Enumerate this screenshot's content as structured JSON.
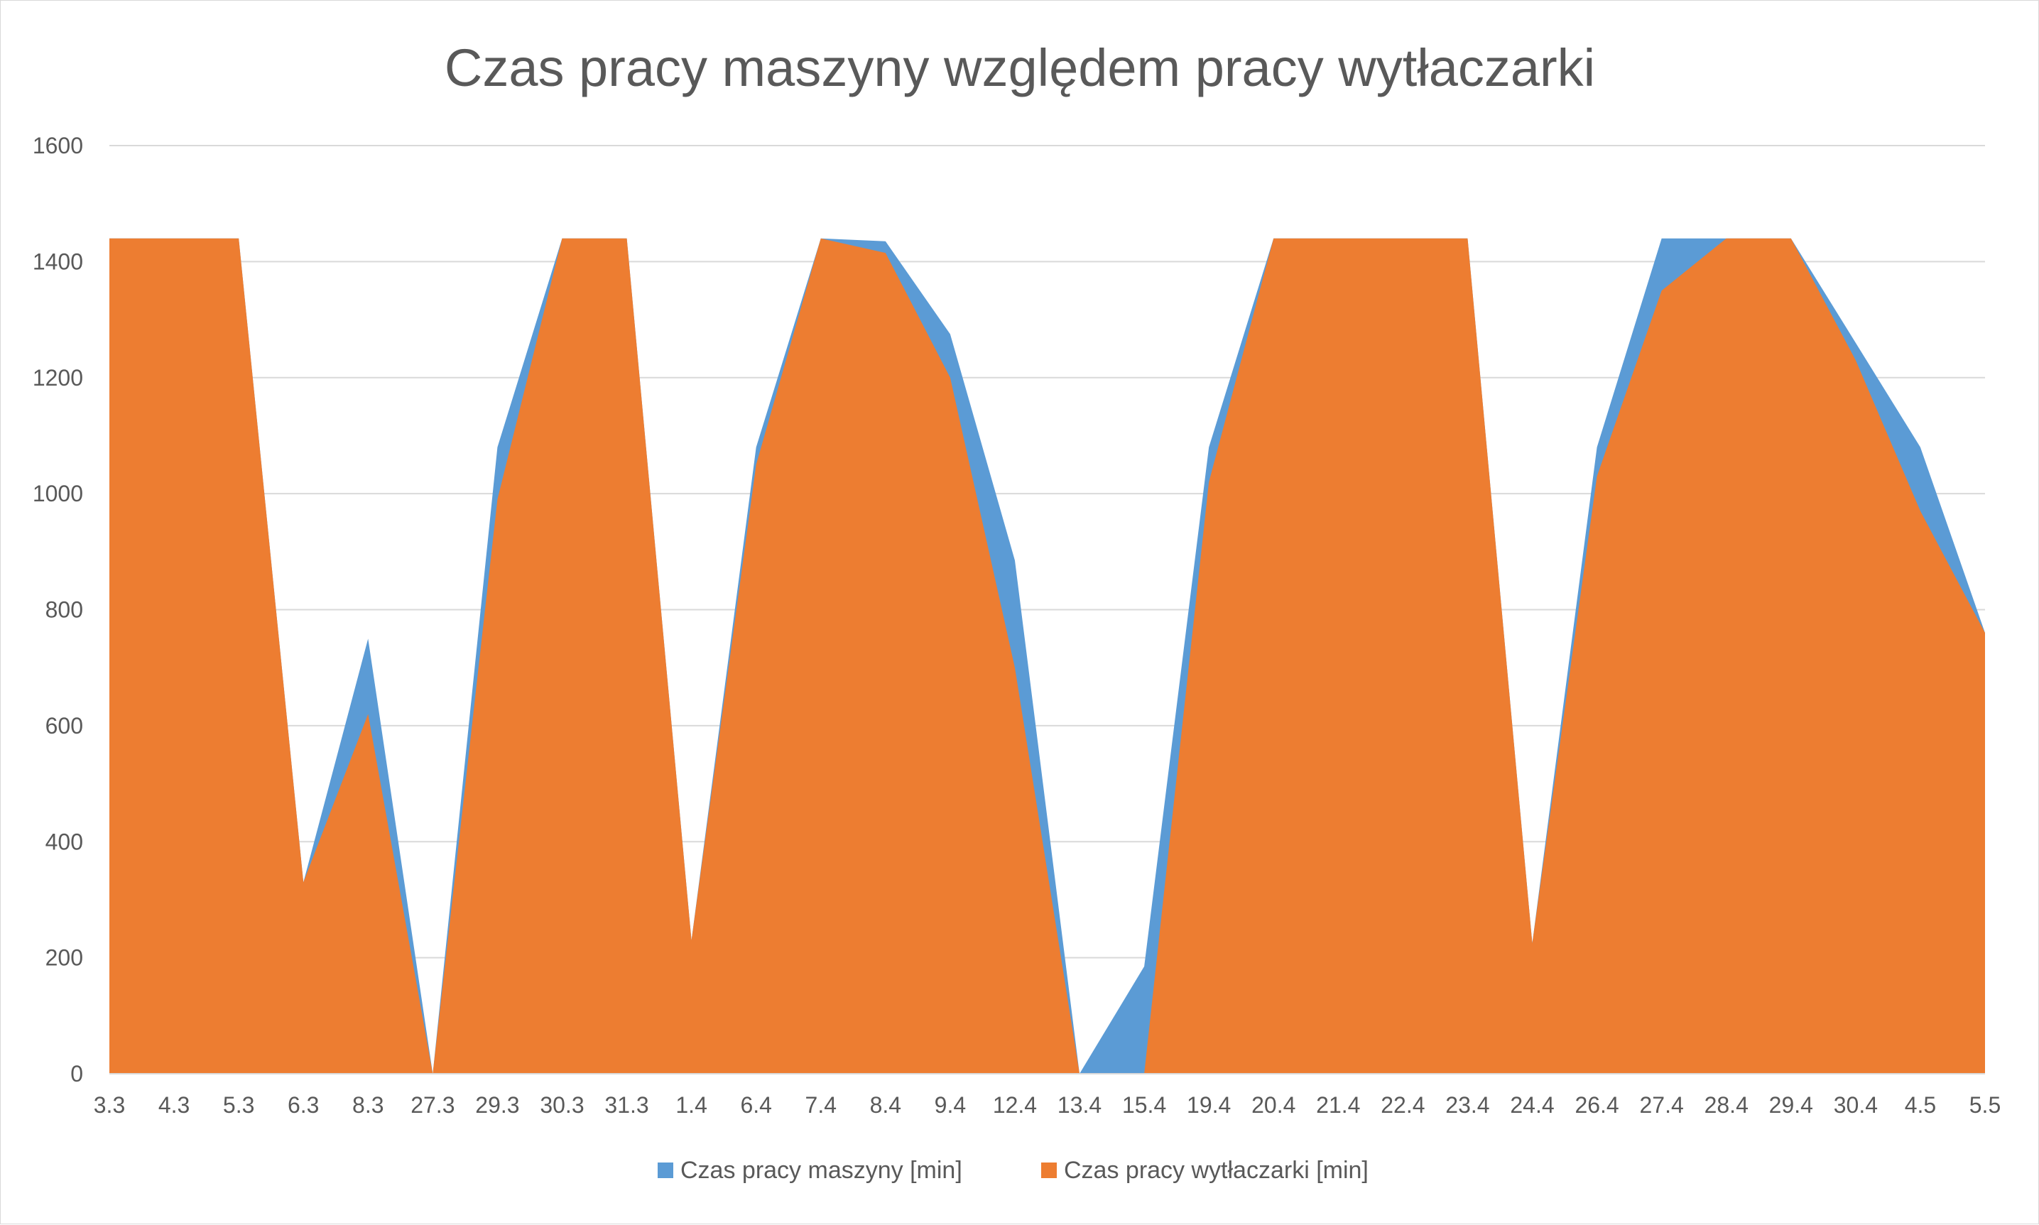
{
  "chart_data": {
    "type": "area",
    "title": "Czas pracy maszyny względem pracy wytłaczarki",
    "xlabel": "",
    "ylabel": "",
    "ylim": [
      0,
      1600
    ],
    "yticks": [
      0,
      200,
      400,
      600,
      800,
      1000,
      1200,
      1400,
      1600
    ],
    "grid": true,
    "legend_position": "bottom",
    "categories": [
      "3.3",
      "4.3",
      "5.3",
      "6.3",
      "8.3",
      "27.3",
      "29.3",
      "30.3",
      "31.3",
      "1.4",
      "6.4",
      "7.4",
      "8.4",
      "9.4",
      "12.4",
      "13.4",
      "15.4",
      "19.4",
      "20.4",
      "21.4",
      "22.4",
      "23.4",
      "24.4",
      "26.4",
      "27.4",
      "28.4",
      "29.4",
      "30.4",
      "4.5",
      "5.5"
    ],
    "series": [
      {
        "name": "Czas pracy maszyny [min]",
        "color": "#5B9BD5",
        "values": [
          1440,
          1440,
          1440,
          330,
          750,
          0,
          1080,
          1440,
          1440,
          230,
          1080,
          1440,
          1435,
          1275,
          885,
          0,
          185,
          1080,
          1440,
          1440,
          1440,
          1440,
          225,
          1080,
          1440,
          1440,
          1440,
          1260,
          1080,
          760
        ]
      },
      {
        "name": "Czas pracy wytłaczarki [min]",
        "color": "#ED7D31",
        "values": [
          1440,
          1440,
          1440,
          330,
          620,
          0,
          990,
          1440,
          1440,
          230,
          1050,
          1440,
          1415,
          1200,
          700,
          0,
          0,
          1020,
          1440,
          1440,
          1440,
          1440,
          225,
          1030,
          1350,
          1440,
          1440,
          1230,
          970,
          760
        ]
      }
    ]
  }
}
